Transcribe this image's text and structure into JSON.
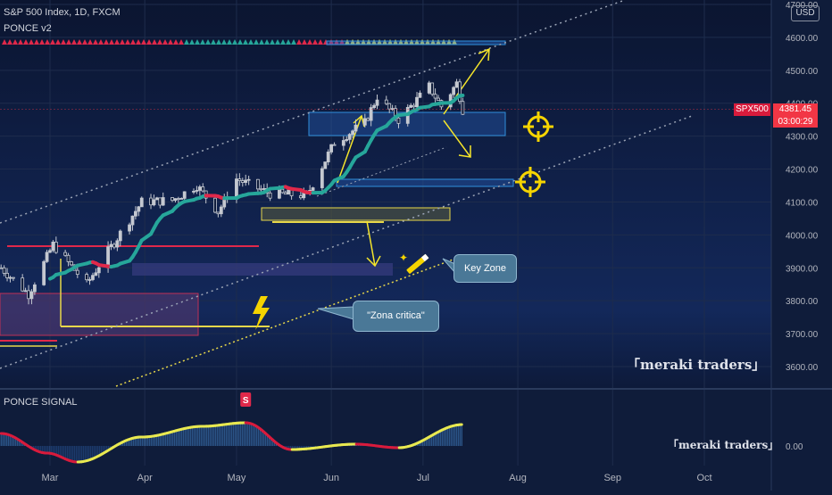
{
  "header": {
    "symbol_line": "S&P 500 Index, 1D, FXCM",
    "indicator": "PONCE v2",
    "sub_indicator": "PONCE SIGNAL",
    "currency": "USD"
  },
  "price_tag": {
    "symbol": "SPX500",
    "price": "4381.45",
    "countdown": "03:00:29"
  },
  "annotations": {
    "key_zone": "Key Zone",
    "zona_critica": "\"Zona critica\"",
    "watermark_main": "「meraki traders」",
    "watermark_signal": "「meraki traders」",
    "signal_marker": "S"
  },
  "colors": {
    "background": "#0f1c3a",
    "grid": "#1e2c4c",
    "candle": "#c4c8d0",
    "ma_bull": "#26a69a",
    "ma_bear": "#e0284a",
    "signal_bull": "#e9e950",
    "signal_bear": "#d81b3c",
    "annot": "#f5e52b",
    "box_blue": "#2f8fdc",
    "channel": "#9aa3b5"
  },
  "icons": [
    "crosshair-target-icon",
    "lightning-bolt-icon",
    "magic-wand-icon"
  ],
  "chart_data": [
    {
      "type": "candlestick",
      "title": "S&P 500 Index, 1D, FXCM",
      "x_ticks": [
        "Mar",
        "Apr",
        "May",
        "Jun",
        "Jul",
        "Aug",
        "Sep",
        "Oct"
      ],
      "y_ticks": [
        "3600.00",
        "3700.00",
        "3800.00",
        "3900.00",
        "4000.00",
        "4100.00",
        "4200.00",
        "4300.00",
        "4400.00",
        "4500.00",
        "4600.00",
        "4700.00"
      ],
      "ylim": [
        3550,
        4720
      ],
      "last_price": 4381.45,
      "close_path": [
        [
          "2023-02-13",
          3900
        ],
        [
          "2023-02-22",
          3820
        ],
        [
          "2023-03-02",
          3970
        ],
        [
          "2023-03-13",
          3850
        ],
        [
          "2023-03-20",
          3950
        ],
        [
          "2023-03-31",
          4100
        ],
        [
          "2023-04-10",
          4105
        ],
        [
          "2023-04-18",
          4150
        ],
        [
          "2023-04-25",
          4070
        ],
        [
          "2023-05-01",
          4170
        ],
        [
          "2023-05-12",
          4125
        ],
        [
          "2023-05-24",
          4120
        ],
        [
          "2023-06-02",
          4280
        ],
        [
          "2023-06-12",
          4340
        ],
        [
          "2023-06-16",
          4420
        ],
        [
          "2023-06-23",
          4350
        ],
        [
          "2023-07-03",
          4450
        ],
        [
          "2023-07-07",
          4390
        ],
        [
          "2023-07-12",
          4460
        ],
        [
          "2023-07-14",
          4381
        ]
      ],
      "grid": true
    },
    {
      "type": "line",
      "title": "PONCE SIGNAL",
      "y_ticks": [
        "0.00"
      ],
      "x": [
        "2023-02-13",
        "2023-02-28",
        "2023-03-10",
        "2023-03-31",
        "2023-04-20",
        "2023-05-04",
        "2023-05-19",
        "2023-06-09",
        "2023-06-23",
        "2023-07-14"
      ],
      "values": [
        0.35,
        -0.2,
        -0.45,
        0.25,
        0.55,
        0.65,
        -0.1,
        0.05,
        -0.05,
        0.6
      ]
    }
  ]
}
